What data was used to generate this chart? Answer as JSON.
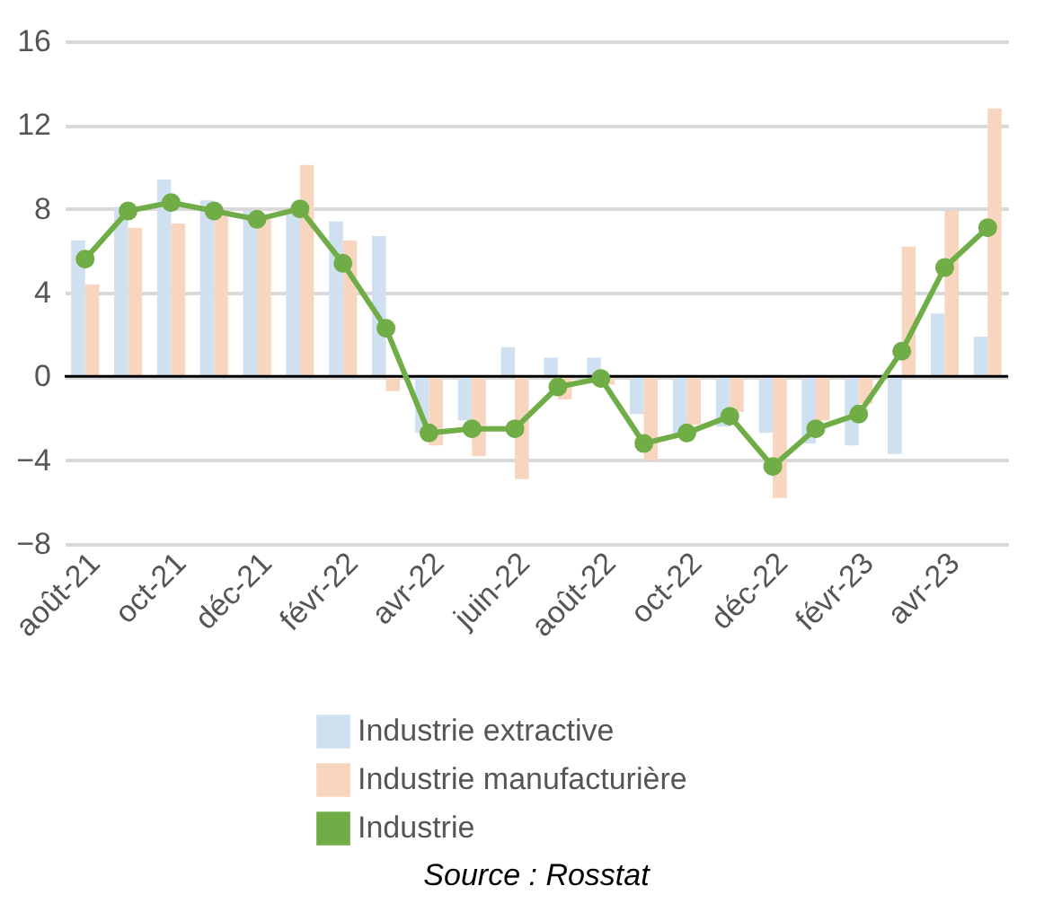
{
  "chart_data": {
    "type": "bar",
    "categories": [
      "août-21",
      null,
      "oct-21",
      null,
      "déc-21",
      null,
      "févr-22",
      null,
      "avr-22",
      null,
      "juin-22",
      null,
      "août-22",
      null,
      "oct-22",
      null,
      "déc-22",
      null,
      "févr-23",
      null,
      "avr-23",
      null
    ],
    "series": [
      {
        "name": "Industrie extractive",
        "color": "#cfe0f1",
        "values": [
          6.5,
          8.1,
          9.4,
          8.4,
          7.9,
          7.9,
          7.4,
          6.7,
          -2.7,
          -2.1,
          1.4,
          0.9,
          0.9,
          -1.8,
          -2.8,
          -2.4,
          -2.7,
          -3.2,
          -3.3,
          -3.7,
          3.0,
          1.9
        ]
      },
      {
        "name": "Industrie manufacturière",
        "color": "#f8d5be",
        "values": [
          4.4,
          7.1,
          7.3,
          7.7,
          7.5,
          10.1,
          6.5,
          -0.7,
          -3.3,
          -3.8,
          -4.9,
          -1.1,
          -0.4,
          -4.0,
          -2.3,
          -1.7,
          -5.8,
          -2.1,
          -1.3,
          6.2,
          7.9,
          12.8
        ]
      },
      {
        "name": "Industrie",
        "type": "line",
        "color": "#70ad47",
        "marker": "circle",
        "values": [
          5.6,
          7.9,
          8.3,
          7.9,
          7.5,
          8.0,
          5.4,
          2.3,
          -2.7,
          -2.5,
          -2.5,
          -0.5,
          -0.1,
          -3.2,
          -2.7,
          -1.9,
          -4.3,
          -2.5,
          -1.8,
          1.2,
          5.2,
          7.1
        ]
      }
    ],
    "ylim": [
      -8,
      16
    ],
    "yticks": [
      -8,
      -4,
      0,
      4,
      8,
      12,
      16
    ],
    "grid": "y",
    "legend": "bottom",
    "annotations": [
      "Source : Rosstat"
    ]
  }
}
